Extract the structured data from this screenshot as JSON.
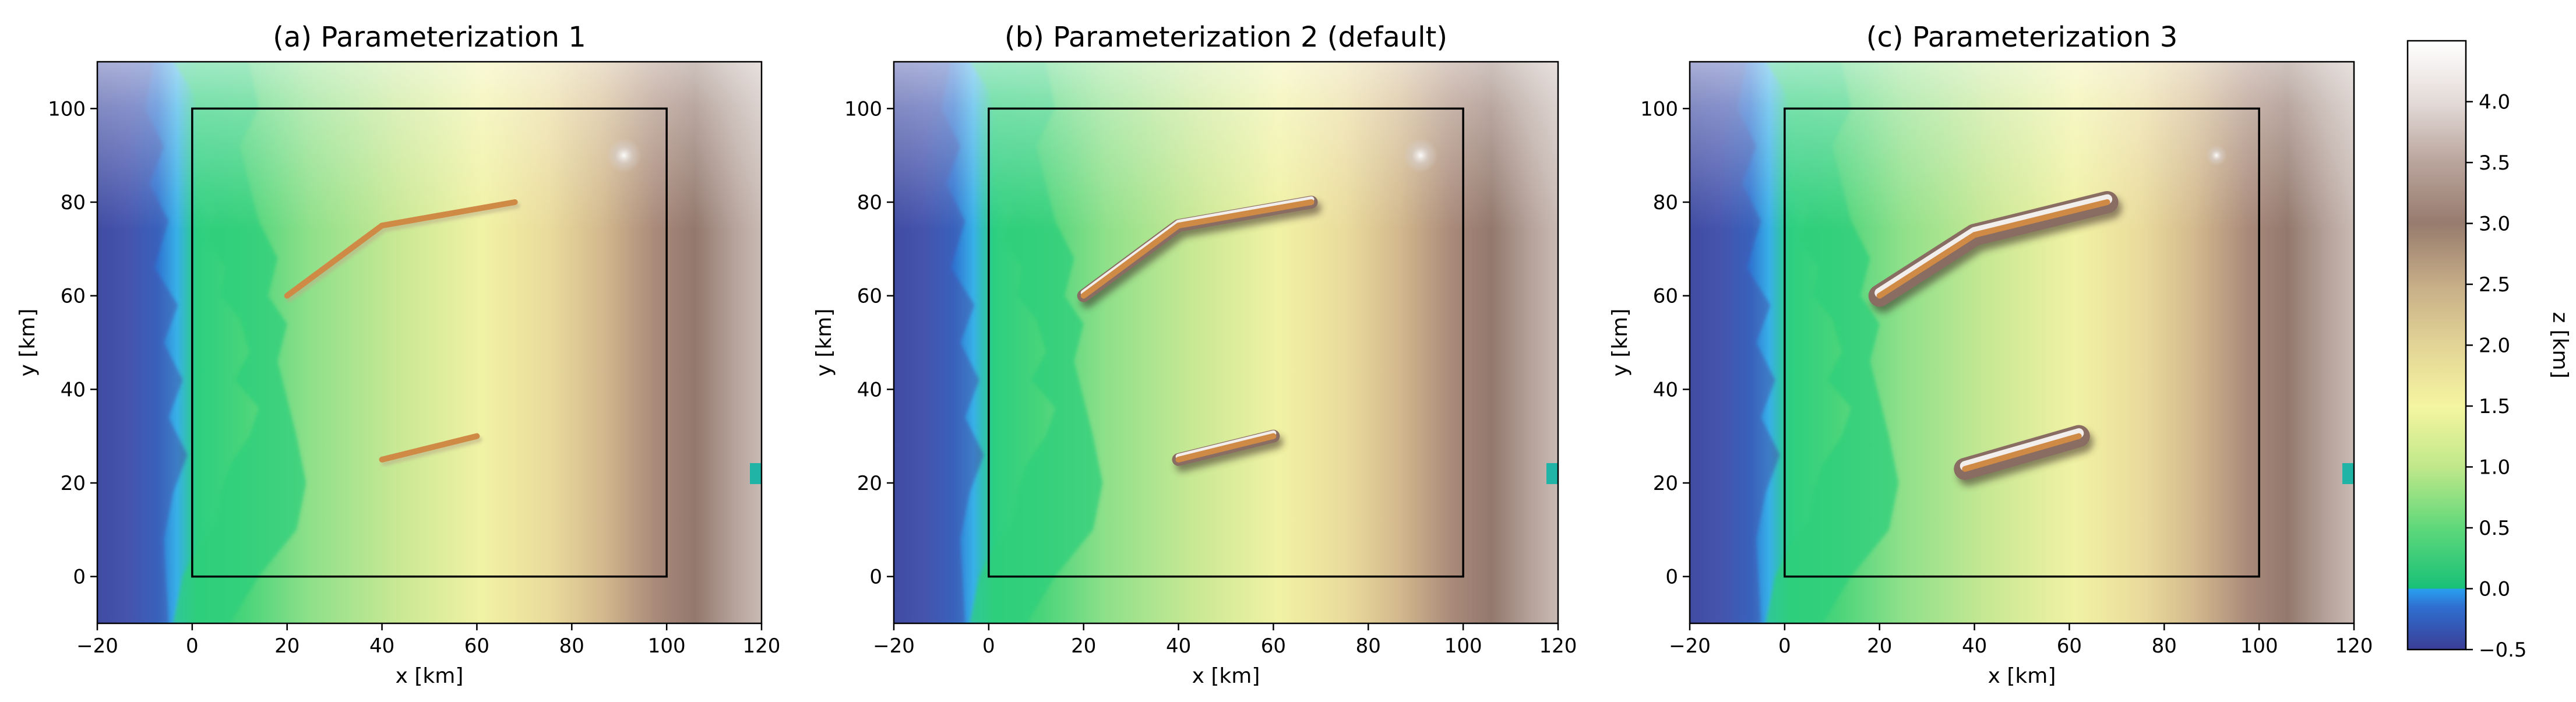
{
  "chart_data": [
    {
      "type": "heatmap",
      "title": "(a) Parameterization 1",
      "xlabel": "x [km]",
      "ylabel": "y [km]",
      "xlim": [
        -20,
        120
      ],
      "ylim": [
        -10,
        110
      ],
      "xticks": [
        -20,
        0,
        20,
        40,
        60,
        80,
        100,
        120
      ],
      "yticks": [
        0,
        20,
        40,
        60,
        80,
        100
      ],
      "domain_box": {
        "x": [
          0,
          100
        ],
        "y": [
          0,
          100
        ]
      },
      "ridges": [
        {
          "points": [
            [
              20,
              60
            ],
            [
              40,
              75
            ],
            [
              68,
              80
            ]
          ],
          "shading": "none"
        },
        {
          "points": [
            [
              40,
              25
            ],
            [
              60,
              30
            ]
          ],
          "shading": "none"
        }
      ]
    },
    {
      "type": "heatmap",
      "title": "(b) Parameterization 2 (default)",
      "xlabel": "x [km]",
      "ylabel": "y [km]",
      "xlim": [
        -20,
        120
      ],
      "ylim": [
        -10,
        110
      ],
      "xticks": [
        -20,
        0,
        20,
        40,
        60,
        80,
        100,
        120
      ],
      "yticks": [
        0,
        20,
        40,
        60,
        80,
        100
      ],
      "domain_box": {
        "x": [
          0,
          100
        ],
        "y": [
          0,
          100
        ]
      },
      "ridges": [
        {
          "points": [
            [
              20,
              60
            ],
            [
              40,
              75
            ],
            [
              68,
              80
            ]
          ],
          "shading": "narrow"
        },
        {
          "points": [
            [
              40,
              25
            ],
            [
              60,
              30
            ]
          ],
          "shading": "narrow"
        }
      ]
    },
    {
      "type": "heatmap",
      "title": "(c) Parameterization 3",
      "xlabel": "x [km]",
      "ylabel": "y [km]",
      "xlim": [
        -20,
        120
      ],
      "ylim": [
        -10,
        110
      ],
      "xticks": [
        -20,
        0,
        20,
        40,
        60,
        80,
        100,
        120
      ],
      "yticks": [
        0,
        20,
        40,
        60,
        80,
        100
      ],
      "domain_box": {
        "x": [
          0,
          100
        ],
        "y": [
          0,
          100
        ]
      },
      "ridges": [
        {
          "points": [
            [
              20,
              60
            ],
            [
              40,
              73
            ],
            [
              68,
              80
            ]
          ],
          "shading": "wide"
        },
        {
          "points": [
            [
              38,
              23
            ],
            [
              62,
              30
            ]
          ],
          "shading": "wide"
        }
      ]
    }
  ],
  "colorbar": {
    "label": "z [km]",
    "range": [
      -0.5,
      4.5
    ],
    "ticks": [
      "−0.5",
      "0.0",
      "0.5",
      "1.0",
      "1.5",
      "2.0",
      "2.5",
      "3.0",
      "3.5",
      "4.0"
    ],
    "tick_values": [
      -0.5,
      0.0,
      0.5,
      1.0,
      1.5,
      2.0,
      2.5,
      3.0,
      3.5,
      4.0
    ],
    "stops": [
      {
        "z": -0.5,
        "color": "#3b3e96"
      },
      {
        "z": -0.15,
        "color": "#2f6fd0"
      },
      {
        "z": 0.0,
        "color": "#28a0f0"
      },
      {
        "z": 0.001,
        "color": "#18c078"
      },
      {
        "z": 0.5,
        "color": "#5fd87a"
      },
      {
        "z": 1.0,
        "color": "#c0e88a"
      },
      {
        "z": 1.5,
        "color": "#f5f5a0"
      },
      {
        "z": 2.0,
        "color": "#e3d496"
      },
      {
        "z": 2.5,
        "color": "#c6ad87"
      },
      {
        "z": 3.0,
        "color": "#977b6e"
      },
      {
        "z": 3.5,
        "color": "#b9a49c"
      },
      {
        "z": 4.0,
        "color": "#e4dbd8"
      },
      {
        "z": 4.5,
        "color": "#ffffff"
      }
    ]
  },
  "ridge_color": "#cf8a45",
  "box_color": "#000000"
}
